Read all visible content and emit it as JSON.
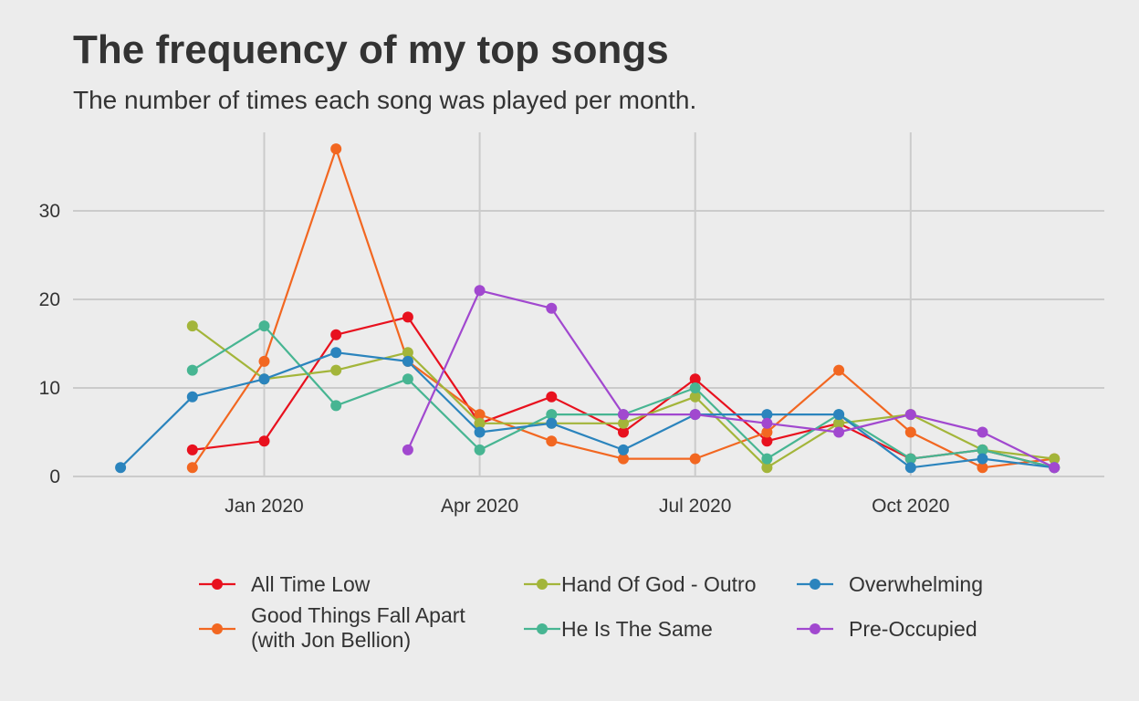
{
  "title": "The frequency of my top songs",
  "subtitle": "The number of times each song was played per month.",
  "chart_data": {
    "type": "line",
    "title": "The frequency of my top songs",
    "subtitle": "The number of times each song was played per month.",
    "xlabel": "",
    "ylabel": "",
    "x": [
      "2019-11",
      "2019-12",
      "2020-01",
      "2020-02",
      "2020-03",
      "2020-04",
      "2020-05",
      "2020-06",
      "2020-07",
      "2020-08",
      "2020-09",
      "2020-10",
      "2020-11",
      "2020-12"
    ],
    "x_ticks": [
      "Jan 2020",
      "Apr 2020",
      "Jul 2020",
      "Oct 2020"
    ],
    "y_ticks": [
      0,
      10,
      20,
      30
    ],
    "ylim": [
      0,
      37
    ],
    "grid": true,
    "legend_position": "bottom",
    "series": [
      {
        "name": "All Time Low",
        "color": "#e8111e",
        "values": [
          null,
          3,
          4,
          16,
          18,
          6,
          9,
          5,
          11,
          4,
          6,
          2,
          3,
          1
        ]
      },
      {
        "name": "Good Things Fall Apart (with Jon Bellion)",
        "name_lines": [
          "Good Things Fall Apart",
          "(with Jon Bellion)"
        ],
        "color": "#f26721",
        "values": [
          null,
          1,
          13,
          37,
          13,
          7,
          4,
          2,
          2,
          5,
          12,
          5,
          1,
          2
        ]
      },
      {
        "name": "Hand Of God - Outro",
        "color": "#a3b53a",
        "values": [
          null,
          17,
          11,
          12,
          14,
          6,
          6,
          6,
          9,
          1,
          6,
          7,
          3,
          2
        ]
      },
      {
        "name": "He Is The Same",
        "color": "#47b592",
        "values": [
          null,
          12,
          17,
          8,
          11,
          3,
          7,
          7,
          10,
          2,
          7,
          2,
          3,
          1
        ]
      },
      {
        "name": "Overwhelming",
        "color": "#2b84bd",
        "values": [
          1,
          9,
          11,
          14,
          13,
          5,
          6,
          3,
          7,
          7,
          7,
          1,
          2,
          1
        ]
      },
      {
        "name": "Pre-Occupied",
        "color": "#a148cf",
        "values": [
          null,
          null,
          null,
          null,
          3,
          21,
          19,
          7,
          7,
          6,
          5,
          7,
          5,
          1
        ]
      }
    ]
  }
}
